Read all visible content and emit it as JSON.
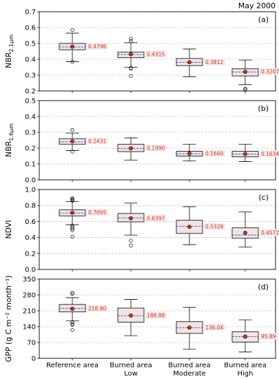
{
  "figure": {
    "title": "May 2000"
  },
  "chart_data": [
    {
      "type": "box",
      "panel_label": "(a)",
      "ylabel": "NBR",
      "ylabel_sub": "2.1μm",
      "ylim": [
        0.2,
        0.7
      ],
      "yticks": [
        0.2,
        0.3,
        0.4,
        0.5,
        0.6,
        0.7
      ],
      "tick_decimals": 1,
      "grid": true,
      "categories": [
        "Reference area",
        "Burned area Low",
        "Burned area Moderate",
        "Burned area High"
      ],
      "boxes": [
        {
          "whislo": 0.385,
          "q1": 0.46,
          "med": 0.478,
          "q3": 0.5,
          "whishi": 0.565,
          "mean": 0.4796,
          "mean_label": "0.4796",
          "fliers": [
            0.585,
            0.383
          ]
        },
        {
          "whislo": 0.35,
          "q1": 0.41,
          "med": 0.43,
          "q3": 0.445,
          "whishi": 0.505,
          "mean": 0.4315,
          "mean_label": "0.4315",
          "fliers": [
            0.53,
            0.515,
            0.345,
            0.34,
            0.295
          ]
        },
        {
          "whislo": 0.29,
          "q1": 0.36,
          "med": 0.38,
          "q3": 0.405,
          "whishi": 0.465,
          "mean": 0.3812,
          "mean_label": "0.3812",
          "fliers": []
        },
        {
          "whislo": 0.24,
          "q1": 0.295,
          "med": 0.32,
          "q3": 0.34,
          "whishi": 0.395,
          "mean": 0.3207,
          "mean_label": "0.3207",
          "fliers": [
            0.215,
            0.208
          ]
        }
      ]
    },
    {
      "type": "box",
      "panel_label": "(b)",
      "ylabel": "NBR",
      "ylabel_sub": "1.6μm",
      "ylim": [
        0.0,
        0.5
      ],
      "yticks": [
        0.0,
        0.1,
        0.2,
        0.3,
        0.4,
        0.5
      ],
      "tick_decimals": 1,
      "grid": true,
      "categories": [
        "Reference area",
        "Burned area Low",
        "Burned area Moderate",
        "Burned area High"
      ],
      "boxes": [
        {
          "whislo": 0.185,
          "q1": 0.225,
          "med": 0.24,
          "q3": 0.26,
          "whishi": 0.295,
          "mean": 0.2431,
          "mean_label": "0.2431",
          "fliers": [
            0.315,
            0.178
          ]
        },
        {
          "whislo": 0.125,
          "q1": 0.178,
          "med": 0.198,
          "q3": 0.225,
          "whishi": 0.265,
          "mean": 0.199,
          "mean_label": "0.1990",
          "fliers": []
        },
        {
          "whislo": 0.12,
          "q1": 0.15,
          "med": 0.165,
          "q3": 0.18,
          "whishi": 0.225,
          "mean": 0.166,
          "mean_label": "0.1660",
          "fliers": []
        },
        {
          "whislo": 0.115,
          "q1": 0.145,
          "med": 0.162,
          "q3": 0.18,
          "whishi": 0.225,
          "mean": 0.1634,
          "mean_label": "0.1634",
          "fliers": []
        }
      ]
    },
    {
      "type": "box",
      "panel_label": "(c)",
      "ylabel": "NDVI",
      "ylabel_sub": "",
      "ylim": [
        0.0,
        1.0
      ],
      "yticks": [
        0.0,
        0.2,
        0.4,
        0.6,
        0.8,
        1.0
      ],
      "tick_decimals": 1,
      "grid": true,
      "categories": [
        "Reference area",
        "Burned area Low",
        "Burned area Moderate",
        "Burned area High"
      ],
      "boxes": [
        {
          "whislo": 0.56,
          "q1": 0.67,
          "med": 0.705,
          "q3": 0.745,
          "whishi": 0.85,
          "mean": 0.7095,
          "mean_label": "0.7095",
          "fliers": [
            0.89,
            0.88,
            0.87,
            0.86,
            0.55,
            0.53,
            0.51,
            0.49,
            0.41
          ]
        },
        {
          "whislo": 0.43,
          "q1": 0.595,
          "med": 0.645,
          "q3": 0.7,
          "whishi": 0.83,
          "mean": 0.6397,
          "mean_label": "0.6397",
          "fliers": [
            0.36,
            0.3
          ]
        },
        {
          "whislo": 0.31,
          "q1": 0.45,
          "med": 0.54,
          "q3": 0.615,
          "whishi": 0.785,
          "mean": 0.5328,
          "mean_label": "0.5328",
          "fliers": []
        },
        {
          "whislo": 0.28,
          "q1": 0.39,
          "med": 0.43,
          "q3": 0.52,
          "whishi": 0.72,
          "mean": 0.4572,
          "mean_label": "0.4572",
          "fliers": []
        }
      ]
    },
    {
      "type": "box",
      "panel_label": "(d)",
      "ylabel": "GPP (g C m⁻² month⁻¹)",
      "ylabel_sub": "",
      "ylim": [
        0,
        350
      ],
      "yticks": [
        0,
        70,
        140,
        210,
        280,
        350
      ],
      "tick_decimals": 0,
      "grid": true,
      "categories": [
        "Reference area",
        "Burned area Low",
        "Burned area Moderate",
        "Burned area High"
      ],
      "xticklabels": [
        [
          "Reference area"
        ],
        [
          "Burned area",
          "Low"
        ],
        [
          "Burned area",
          "Moderate"
        ],
        [
          "Burned area",
          "High"
        ]
      ],
      "boxes": [
        {
          "whislo": 165,
          "q1": 205,
          "med": 220,
          "q3": 238,
          "whishi": 268,
          "mean": 218.8,
          "mean_label": "218.80",
          "fliers": [
            290,
            285,
            160,
            152,
            148,
            125
          ]
        },
        {
          "whislo": 100,
          "q1": 160,
          "med": 188,
          "q3": 222,
          "whishi": 260,
          "mean": 188.88,
          "mean_label": "188.88",
          "fliers": []
        },
        {
          "whislo": 40,
          "q1": 110,
          "med": 135,
          "q3": 162,
          "whishi": 225,
          "mean": 136.04,
          "mean_label": "136.04",
          "fliers": []
        },
        {
          "whislo": 28,
          "q1": 72,
          "med": 96,
          "q3": 117,
          "whishi": 170,
          "mean": 95.89,
          "mean_label": "95.89",
          "fliers": []
        }
      ]
    }
  ],
  "colors": {
    "box_fill": "#f3e4e4",
    "median": "#2a4fd6",
    "mean_marker": "#c0392b",
    "mean_edge": "#111111",
    "label_text": "#c0392b",
    "label_bg": "#fbe9e9",
    "grid": "#b0b0b0",
    "axis": "#000000"
  }
}
